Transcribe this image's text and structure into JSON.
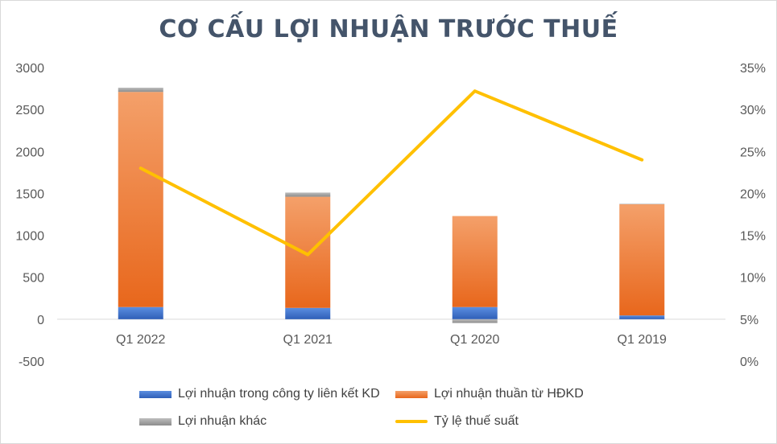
{
  "chart_data": {
    "type": "bar",
    "stacked": true,
    "title": "CƠ CẤU LỢI NHUẬN TRƯỚC THUẾ",
    "categories": [
      "Q1 2022",
      "Q1 2021",
      "Q1 2020",
      "Q1 2019"
    ],
    "series": [
      {
        "name": "Lợi nhuận trong công ty liên kết KD",
        "axis": "left",
        "color": "#4472c4",
        "values": [
          145,
          135,
          145,
          45
        ]
      },
      {
        "name": "Lợi nhuận thuần từ HĐKD",
        "axis": "left",
        "color": "#ed7d31",
        "values": [
          2565,
          1325,
          1085,
          1325
        ]
      },
      {
        "name": "Lợi nhuận khác",
        "axis": "left",
        "color": "#a5a5a5",
        "values": [
          50,
          50,
          -45,
          5
        ]
      },
      {
        "name": "Tỷ lệ thuế suất",
        "axis": "right",
        "type": "line",
        "color": "#ffc000",
        "values": [
          0.23,
          0.127,
          0.322,
          0.24
        ]
      }
    ],
    "y_left": {
      "ylim": [
        -500,
        3000
      ],
      "ticks": [
        3000,
        2500,
        2000,
        1500,
        1000,
        500,
        0,
        -500
      ]
    },
    "y_right": {
      "ylim": [
        0,
        0.35
      ],
      "ticks": [
        "35%",
        "30%",
        "25%",
        "20%",
        "15%",
        "10%",
        "5%",
        "0%"
      ]
    },
    "grid": false,
    "legend_position": "bottom"
  }
}
